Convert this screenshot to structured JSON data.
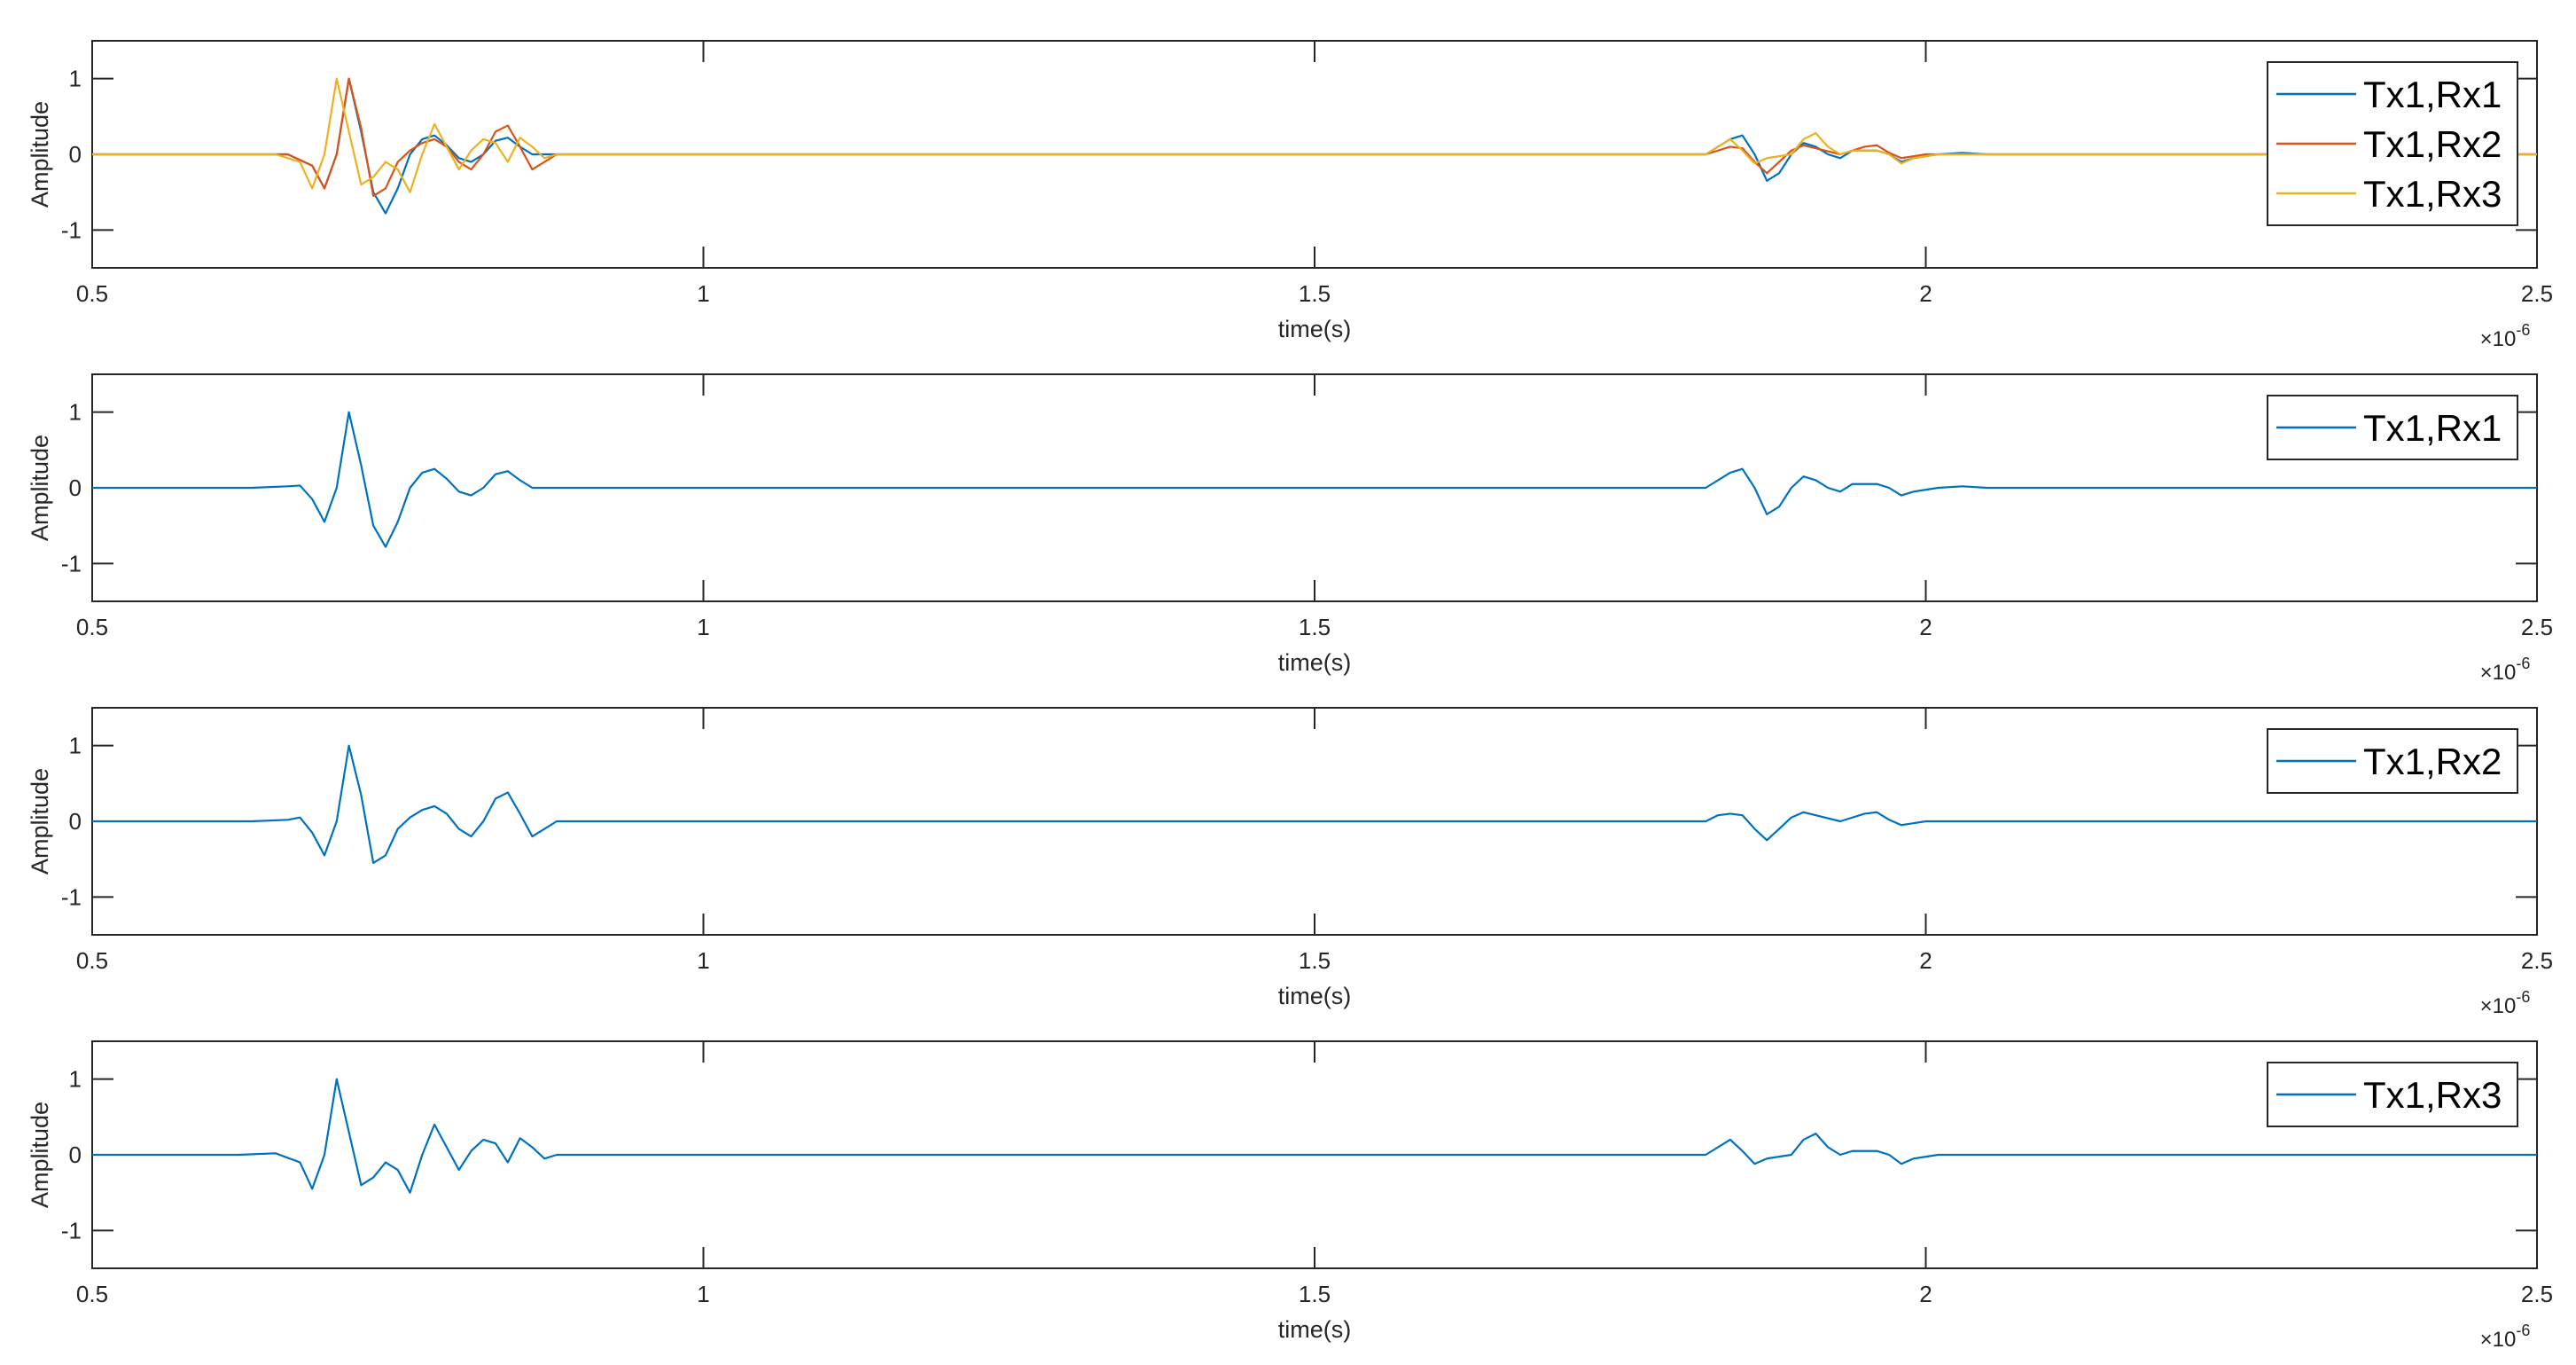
{
  "chart_data": [
    {
      "type": "line",
      "xlabel": "time(s)",
      "ylabel": "Amplitude",
      "xlim": [
        0.5,
        2.5
      ],
      "ylim": [
        -1.5,
        1.5
      ],
      "xticks": [
        "0.5",
        "1",
        "1.5",
        "2",
        "2.5"
      ],
      "yticks": [
        "-1",
        "0",
        "1"
      ],
      "x_exponent": "×10",
      "x_exponent_power": "-6",
      "legend_position": "top-right",
      "series": [
        {
          "name": "Tx1,Rx1",
          "color": "#0072BD",
          "points": [
            [
              0.63,
              0
            ],
            [
              0.66,
              0
            ],
            [
              0.68,
              -0.15
            ],
            [
              0.69,
              -0.45
            ],
            [
              0.7,
              0
            ],
            [
              0.71,
              1.0
            ],
            [
              0.72,
              0.3
            ],
            [
              0.73,
              -0.5
            ],
            [
              0.74,
              -0.78
            ],
            [
              0.75,
              -0.45
            ],
            [
              0.76,
              0
            ],
            [
              0.77,
              0.2
            ],
            [
              0.78,
              0.25
            ],
            [
              0.79,
              0.12
            ],
            [
              0.8,
              -0.05
            ],
            [
              0.81,
              -0.1
            ],
            [
              0.82,
              0
            ],
            [
              0.83,
              0.18
            ],
            [
              0.84,
              0.22
            ],
            [
              0.85,
              0.1
            ],
            [
              0.86,
              0
            ],
            [
              0.88,
              0
            ],
            [
              1.8,
              0
            ],
            [
              1.82,
              0
            ],
            [
              1.84,
              0.2
            ],
            [
              1.85,
              0.25
            ],
            [
              1.86,
              0
            ],
            [
              1.87,
              -0.35
            ],
            [
              1.88,
              -0.25
            ],
            [
              1.89,
              0
            ],
            [
              1.9,
              0.15
            ],
            [
              1.91,
              0.1
            ],
            [
              1.92,
              0
            ],
            [
              1.93,
              -0.05
            ],
            [
              1.94,
              0.05
            ],
            [
              1.96,
              0.05
            ],
            [
              1.97,
              0
            ],
            [
              1.98,
              -0.1
            ],
            [
              1.99,
              -0.05
            ],
            [
              2.01,
              0
            ],
            [
              2.03,
              0.02
            ],
            [
              2.05,
              0
            ]
          ]
        },
        {
          "name": "Tx1,Rx2",
          "color": "#D95319",
          "points": [
            [
              0.63,
              0
            ],
            [
              0.66,
              0
            ],
            [
              0.68,
              -0.15
            ],
            [
              0.69,
              -0.45
            ],
            [
              0.7,
              0
            ],
            [
              0.71,
              1.0
            ],
            [
              0.72,
              0.35
            ],
            [
              0.73,
              -0.55
            ],
            [
              0.74,
              -0.45
            ],
            [
              0.75,
              -0.1
            ],
            [
              0.76,
              0.05
            ],
            [
              0.77,
              0.15
            ],
            [
              0.78,
              0.2
            ],
            [
              0.79,
              0.1
            ],
            [
              0.8,
              -0.1
            ],
            [
              0.81,
              -0.2
            ],
            [
              0.82,
              0
            ],
            [
              0.83,
              0.3
            ],
            [
              0.84,
              0.38
            ],
            [
              0.85,
              0.1
            ],
            [
              0.86,
              -0.2
            ],
            [
              0.87,
              -0.1
            ],
            [
              0.88,
              0
            ],
            [
              1.8,
              0
            ],
            [
              1.82,
              0
            ],
            [
              1.84,
              0.1
            ],
            [
              1.85,
              0.08
            ],
            [
              1.86,
              -0.1
            ],
            [
              1.87,
              -0.25
            ],
            [
              1.88,
              -0.1
            ],
            [
              1.89,
              0.05
            ],
            [
              1.9,
              0.12
            ],
            [
              1.91,
              0.08
            ],
            [
              1.93,
              0
            ],
            [
              1.95,
              0.1
            ],
            [
              1.96,
              0.12
            ],
            [
              1.97,
              0.02
            ],
            [
              1.98,
              -0.05
            ],
            [
              2.0,
              0
            ],
            [
              2.03,
              0
            ]
          ]
        },
        {
          "name": "Tx1,Rx3",
          "color": "#EDB120",
          "points": [
            [
              0.62,
              0
            ],
            [
              0.65,
              0
            ],
            [
              0.67,
              -0.1
            ],
            [
              0.68,
              -0.45
            ],
            [
              0.69,
              0
            ],
            [
              0.7,
              1.0
            ],
            [
              0.71,
              0.3
            ],
            [
              0.72,
              -0.4
            ],
            [
              0.73,
              -0.3
            ],
            [
              0.74,
              -0.1
            ],
            [
              0.75,
              -0.2
            ],
            [
              0.76,
              -0.5
            ],
            [
              0.77,
              0
            ],
            [
              0.78,
              0.4
            ],
            [
              0.79,
              0.1
            ],
            [
              0.8,
              -0.2
            ],
            [
              0.81,
              0.05
            ],
            [
              0.82,
              0.2
            ],
            [
              0.83,
              0.15
            ],
            [
              0.84,
              -0.1
            ],
            [
              0.85,
              0.22
            ],
            [
              0.86,
              0.1
            ],
            [
              0.87,
              -0.05
            ],
            [
              0.88,
              0
            ],
            [
              1.8,
              0
            ],
            [
              1.82,
              0
            ],
            [
              1.84,
              0.2
            ],
            [
              1.85,
              0.05
            ],
            [
              1.86,
              -0.12
            ],
            [
              1.87,
              -0.05
            ],
            [
              1.89,
              0
            ],
            [
              1.9,
              0.2
            ],
            [
              1.91,
              0.28
            ],
            [
              1.92,
              0.1
            ],
            [
              1.93,
              0
            ],
            [
              1.94,
              0.05
            ],
            [
              1.96,
              0.05
            ],
            [
              1.97,
              0
            ],
            [
              1.98,
              -0.12
            ],
            [
              1.99,
              -0.05
            ],
            [
              2.01,
              0
            ],
            [
              2.03,
              0
            ]
          ]
        }
      ]
    },
    {
      "type": "line",
      "xlabel": "time(s)",
      "ylabel": "Amplitude",
      "xlim": [
        0.5,
        2.5
      ],
      "ylim": [
        -1.5,
        1.5
      ],
      "xticks": [
        "0.5",
        "1",
        "1.5",
        "2",
        "2.5"
      ],
      "yticks": [
        "-1",
        "0",
        "1"
      ],
      "x_exponent": "×10",
      "x_exponent_power": "-6",
      "legend_position": "top-right",
      "series": [
        {
          "name": "Tx1,Rx1",
          "color": "#0072BD",
          "points": [
            [
              0.63,
              0
            ],
            [
              0.66,
              0.02
            ],
            [
              0.67,
              0.03
            ],
            [
              0.68,
              -0.15
            ],
            [
              0.69,
              -0.45
            ],
            [
              0.7,
              0
            ],
            [
              0.71,
              1.0
            ],
            [
              0.72,
              0.3
            ],
            [
              0.73,
              -0.5
            ],
            [
              0.74,
              -0.78
            ],
            [
              0.75,
              -0.45
            ],
            [
              0.76,
              0
            ],
            [
              0.77,
              0.2
            ],
            [
              0.78,
              0.25
            ],
            [
              0.79,
              0.12
            ],
            [
              0.8,
              -0.05
            ],
            [
              0.81,
              -0.1
            ],
            [
              0.82,
              0
            ],
            [
              0.83,
              0.18
            ],
            [
              0.84,
              0.22
            ],
            [
              0.85,
              0.1
            ],
            [
              0.86,
              0
            ],
            [
              0.88,
              0
            ],
            [
              1.8,
              0
            ],
            [
              1.82,
              0
            ],
            [
              1.84,
              0.2
            ],
            [
              1.85,
              0.25
            ],
            [
              1.86,
              0
            ],
            [
              1.87,
              -0.35
            ],
            [
              1.88,
              -0.25
            ],
            [
              1.89,
              0
            ],
            [
              1.9,
              0.15
            ],
            [
              1.91,
              0.1
            ],
            [
              1.92,
              0
            ],
            [
              1.93,
              -0.05
            ],
            [
              1.94,
              0.05
            ],
            [
              1.96,
              0.05
            ],
            [
              1.97,
              0
            ],
            [
              1.98,
              -0.1
            ],
            [
              1.99,
              -0.05
            ],
            [
              2.01,
              0
            ],
            [
              2.03,
              0.02
            ],
            [
              2.05,
              0
            ]
          ]
        }
      ]
    },
    {
      "type": "line",
      "xlabel": "time(s)",
      "ylabel": "Amplitude",
      "xlim": [
        0.5,
        2.5
      ],
      "ylim": [
        -1.5,
        1.5
      ],
      "xticks": [
        "0.5",
        "1",
        "1.5",
        "2",
        "2.5"
      ],
      "yticks": [
        "-1",
        "0",
        "1"
      ],
      "x_exponent": "×10",
      "x_exponent_power": "-6",
      "legend_position": "top-right",
      "series": [
        {
          "name": "Tx1,Rx2",
          "color": "#0072BD",
          "points": [
            [
              0.63,
              0
            ],
            [
              0.66,
              0.02
            ],
            [
              0.67,
              0.05
            ],
            [
              0.68,
              -0.15
            ],
            [
              0.69,
              -0.45
            ],
            [
              0.7,
              0
            ],
            [
              0.71,
              1.0
            ],
            [
              0.72,
              0.35
            ],
            [
              0.73,
              -0.55
            ],
            [
              0.74,
              -0.45
            ],
            [
              0.75,
              -0.1
            ],
            [
              0.76,
              0.05
            ],
            [
              0.77,
              0.15
            ],
            [
              0.78,
              0.2
            ],
            [
              0.79,
              0.1
            ],
            [
              0.8,
              -0.1
            ],
            [
              0.81,
              -0.2
            ],
            [
              0.82,
              0
            ],
            [
              0.83,
              0.3
            ],
            [
              0.84,
              0.38
            ],
            [
              0.85,
              0.1
            ],
            [
              0.86,
              -0.2
            ],
            [
              0.87,
              -0.1
            ],
            [
              0.88,
              0
            ],
            [
              1.8,
              0
            ],
            [
              1.82,
              0
            ],
            [
              1.83,
              0.08
            ],
            [
              1.84,
              0.1
            ],
            [
              1.85,
              0.08
            ],
            [
              1.86,
              -0.1
            ],
            [
              1.87,
              -0.25
            ],
            [
              1.88,
              -0.1
            ],
            [
              1.89,
              0.05
            ],
            [
              1.9,
              0.12
            ],
            [
              1.91,
              0.08
            ],
            [
              1.93,
              0
            ],
            [
              1.95,
              0.1
            ],
            [
              1.96,
              0.12
            ],
            [
              1.97,
              0.02
            ],
            [
              1.98,
              -0.05
            ],
            [
              2.0,
              0
            ],
            [
              2.05,
              0
            ]
          ]
        }
      ]
    },
    {
      "type": "line",
      "xlabel": "time(s)",
      "ylabel": "Amplitude",
      "xlim": [
        0.5,
        2.5
      ],
      "ylim": [
        -1.5,
        1.5
      ],
      "xticks": [
        "0.5",
        "1",
        "1.5",
        "2",
        "2.5"
      ],
      "yticks": [
        "-1",
        "0",
        "1"
      ],
      "x_exponent": "×10",
      "x_exponent_power": "-6",
      "legend_position": "top-right",
      "series": [
        {
          "name": "Tx1,Rx3",
          "color": "#0072BD",
          "points": [
            [
              0.62,
              0
            ],
            [
              0.65,
              0.02
            ],
            [
              0.67,
              -0.1
            ],
            [
              0.68,
              -0.45
            ],
            [
              0.69,
              0
            ],
            [
              0.7,
              1.0
            ],
            [
              0.71,
              0.3
            ],
            [
              0.72,
              -0.4
            ],
            [
              0.73,
              -0.3
            ],
            [
              0.74,
              -0.1
            ],
            [
              0.75,
              -0.2
            ],
            [
              0.76,
              -0.5
            ],
            [
              0.77,
              0
            ],
            [
              0.78,
              0.4
            ],
            [
              0.79,
              0.1
            ],
            [
              0.8,
              -0.2
            ],
            [
              0.81,
              0.05
            ],
            [
              0.82,
              0.2
            ],
            [
              0.83,
              0.15
            ],
            [
              0.84,
              -0.1
            ],
            [
              0.85,
              0.22
            ],
            [
              0.86,
              0.1
            ],
            [
              0.87,
              -0.05
            ],
            [
              0.88,
              0
            ],
            [
              1.8,
              0
            ],
            [
              1.82,
              0
            ],
            [
              1.84,
              0.2
            ],
            [
              1.85,
              0.05
            ],
            [
              1.86,
              -0.12
            ],
            [
              1.87,
              -0.05
            ],
            [
              1.89,
              0
            ],
            [
              1.9,
              0.2
            ],
            [
              1.91,
              0.28
            ],
            [
              1.92,
              0.1
            ],
            [
              1.93,
              0
            ],
            [
              1.94,
              0.05
            ],
            [
              1.96,
              0.05
            ],
            [
              1.97,
              0
            ],
            [
              1.98,
              -0.12
            ],
            [
              1.99,
              -0.05
            ],
            [
              2.01,
              0
            ],
            [
              2.04,
              0
            ]
          ]
        }
      ]
    }
  ]
}
